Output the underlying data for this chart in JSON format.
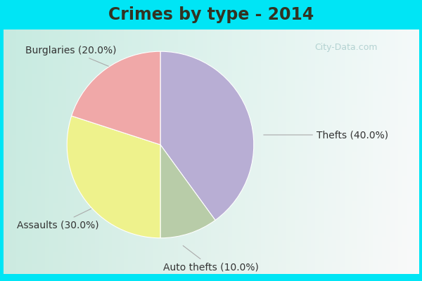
{
  "title": "Crimes by type - 2014",
  "slices": [
    {
      "label": "Thefts (40.0%)",
      "value": 40.0,
      "color": "#b8aed4"
    },
    {
      "label": "Auto thefts (10.0%)",
      "value": 10.0,
      "color": "#b8cca8"
    },
    {
      "label": "Assaults (30.0%)",
      "value": 30.0,
      "color": "#eef28c"
    },
    {
      "label": "Burglaries (20.0%)",
      "value": 20.0,
      "color": "#f0a8a8"
    }
  ],
  "bg_cyan": "#00e5f5",
  "bg_main_top": "#c8ede0",
  "bg_main_bottom": "#d8f0e8",
  "title_fontsize": 17,
  "label_fontsize": 10,
  "watermark": "City-Data.com",
  "startangle": 90,
  "title_color": "#333322",
  "label_color": "#333333",
  "arrow_color": "#aaaaaa"
}
